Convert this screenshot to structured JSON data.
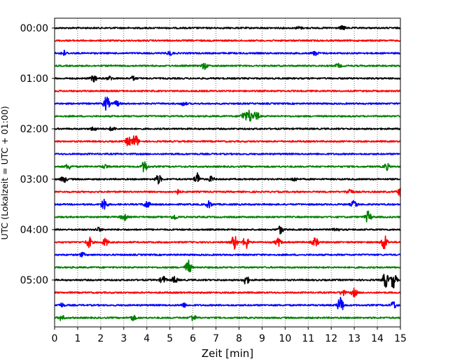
{
  "chart_data": {
    "type": "line",
    "title": "",
    "xlabel": "Zeit  [min]",
    "ylabel": "UTC (Lokalzeit = UTC + 01:00)",
    "xlim": [
      0,
      15
    ],
    "xticks": [
      0,
      1,
      2,
      3,
      4,
      5,
      6,
      7,
      8,
      9,
      10,
      11,
      12,
      13,
      14,
      15
    ],
    "ytick_labels": [
      "00:00",
      "01:00",
      "02:00",
      "03:00",
      "04:00",
      "05:00"
    ],
    "ytick_rows": [
      0,
      4,
      8,
      12,
      16,
      20
    ],
    "grid": "vertical dotted at each minute",
    "row_colors": [
      "#000000",
      "#ff0000",
      "#0000ff",
      "#008000"
    ],
    "rows": [
      {
        "start": "00:00",
        "color": "#000000",
        "events": [
          [
            12.5,
            0.3
          ],
          [
            10.6,
            0.2
          ]
        ]
      },
      {
        "start": "00:15",
        "color": "#ff0000",
        "events": []
      },
      {
        "start": "00:30",
        "color": "#0000ff",
        "events": [
          [
            0.4,
            0.4
          ],
          [
            5.0,
            0.3
          ],
          [
            11.3,
            0.3
          ]
        ]
      },
      {
        "start": "00:45",
        "color": "#008000",
        "events": [
          [
            6.5,
            0.5
          ],
          [
            12.3,
            0.3
          ]
        ]
      },
      {
        "start": "01:00",
        "color": "#000000",
        "events": [
          [
            1.7,
            0.5
          ],
          [
            2.4,
            0.3
          ],
          [
            3.4,
            0.3
          ]
        ]
      },
      {
        "start": "01:15",
        "color": "#ff0000",
        "events": []
      },
      {
        "start": "01:30",
        "color": "#0000ff",
        "events": [
          [
            2.25,
            1.1
          ],
          [
            2.7,
            0.4
          ],
          [
            5.6,
            0.3
          ]
        ]
      },
      {
        "start": "01:45",
        "color": "#008000",
        "events": [
          [
            8.45,
            1.0
          ],
          [
            8.75,
            0.7
          ],
          [
            8.2,
            0.6
          ]
        ]
      },
      {
        "start": "02:00",
        "color": "#000000",
        "events": [
          [
            1.7,
            0.3
          ],
          [
            2.5,
            0.3
          ]
        ]
      },
      {
        "start": "02:15",
        "color": "#ff0000",
        "events": [
          [
            3.2,
            0.7
          ],
          [
            3.5,
            1.1
          ]
        ]
      },
      {
        "start": "02:30",
        "color": "#0000ff",
        "events": []
      },
      {
        "start": "02:45",
        "color": "#008000",
        "events": [
          [
            0.6,
            0.4
          ],
          [
            2.2,
            0.3
          ],
          [
            3.9,
            0.9
          ],
          [
            14.4,
            0.5
          ]
        ]
      },
      {
        "start": "03:00",
        "color": "#000000",
        "events": [
          [
            0.4,
            0.5
          ],
          [
            4.5,
            0.7
          ],
          [
            6.2,
            1.0
          ],
          [
            6.8,
            0.4
          ],
          [
            10.4,
            0.3
          ]
        ]
      },
      {
        "start": "03:15",
        "color": "#ff0000",
        "events": [
          [
            5.3,
            0.4
          ],
          [
            12.8,
            0.5
          ],
          [
            15.0,
            0.7
          ]
        ]
      },
      {
        "start": "03:30",
        "color": "#0000ff",
        "events": [
          [
            2.15,
            1.0
          ],
          [
            4.0,
            0.6
          ],
          [
            6.7,
            0.5
          ],
          [
            13.0,
            0.6
          ]
        ]
      },
      {
        "start": "03:45",
        "color": "#008000",
        "events": [
          [
            3.0,
            0.6
          ],
          [
            5.2,
            0.4
          ],
          [
            13.6,
            0.9
          ]
        ]
      },
      {
        "start": "04:00",
        "color": "#000000",
        "events": [
          [
            1.9,
            0.3
          ],
          [
            9.8,
            0.6
          ],
          [
            12.2,
            0.3
          ]
        ]
      },
      {
        "start": "04:15",
        "color": "#ff0000",
        "events": [
          [
            1.5,
            0.8
          ],
          [
            2.2,
            0.6
          ],
          [
            7.8,
            1.1
          ],
          [
            8.3,
            1.0
          ],
          [
            9.7,
            0.6
          ],
          [
            11.3,
            0.7
          ],
          [
            14.3,
            1.2
          ]
        ]
      },
      {
        "start": "04:30",
        "color": "#0000ff",
        "events": [
          [
            1.2,
            0.3
          ]
        ]
      },
      {
        "start": "04:45",
        "color": "#008000",
        "events": [
          [
            5.8,
            1.1
          ]
        ]
      },
      {
        "start": "05:00",
        "color": "#000000",
        "events": [
          [
            4.7,
            0.6
          ],
          [
            5.2,
            0.5
          ],
          [
            8.3,
            0.7
          ],
          [
            14.35,
            1.2
          ],
          [
            14.7,
            1.3
          ]
        ]
      },
      {
        "start": "05:15",
        "color": "#ff0000",
        "events": [
          [
            12.5,
            0.4
          ],
          [
            13.0,
            0.6
          ]
        ]
      },
      {
        "start": "05:30",
        "color": "#0000ff",
        "events": [
          [
            0.3,
            0.3
          ],
          [
            5.6,
            0.3
          ],
          [
            12.4,
            1.3
          ],
          [
            14.7,
            0.6
          ]
        ]
      },
      {
        "start": "05:45",
        "color": "#008000",
        "events": [
          [
            0.3,
            0.4
          ],
          [
            3.4,
            0.4
          ],
          [
            6.0,
            0.5
          ]
        ]
      }
    ]
  }
}
